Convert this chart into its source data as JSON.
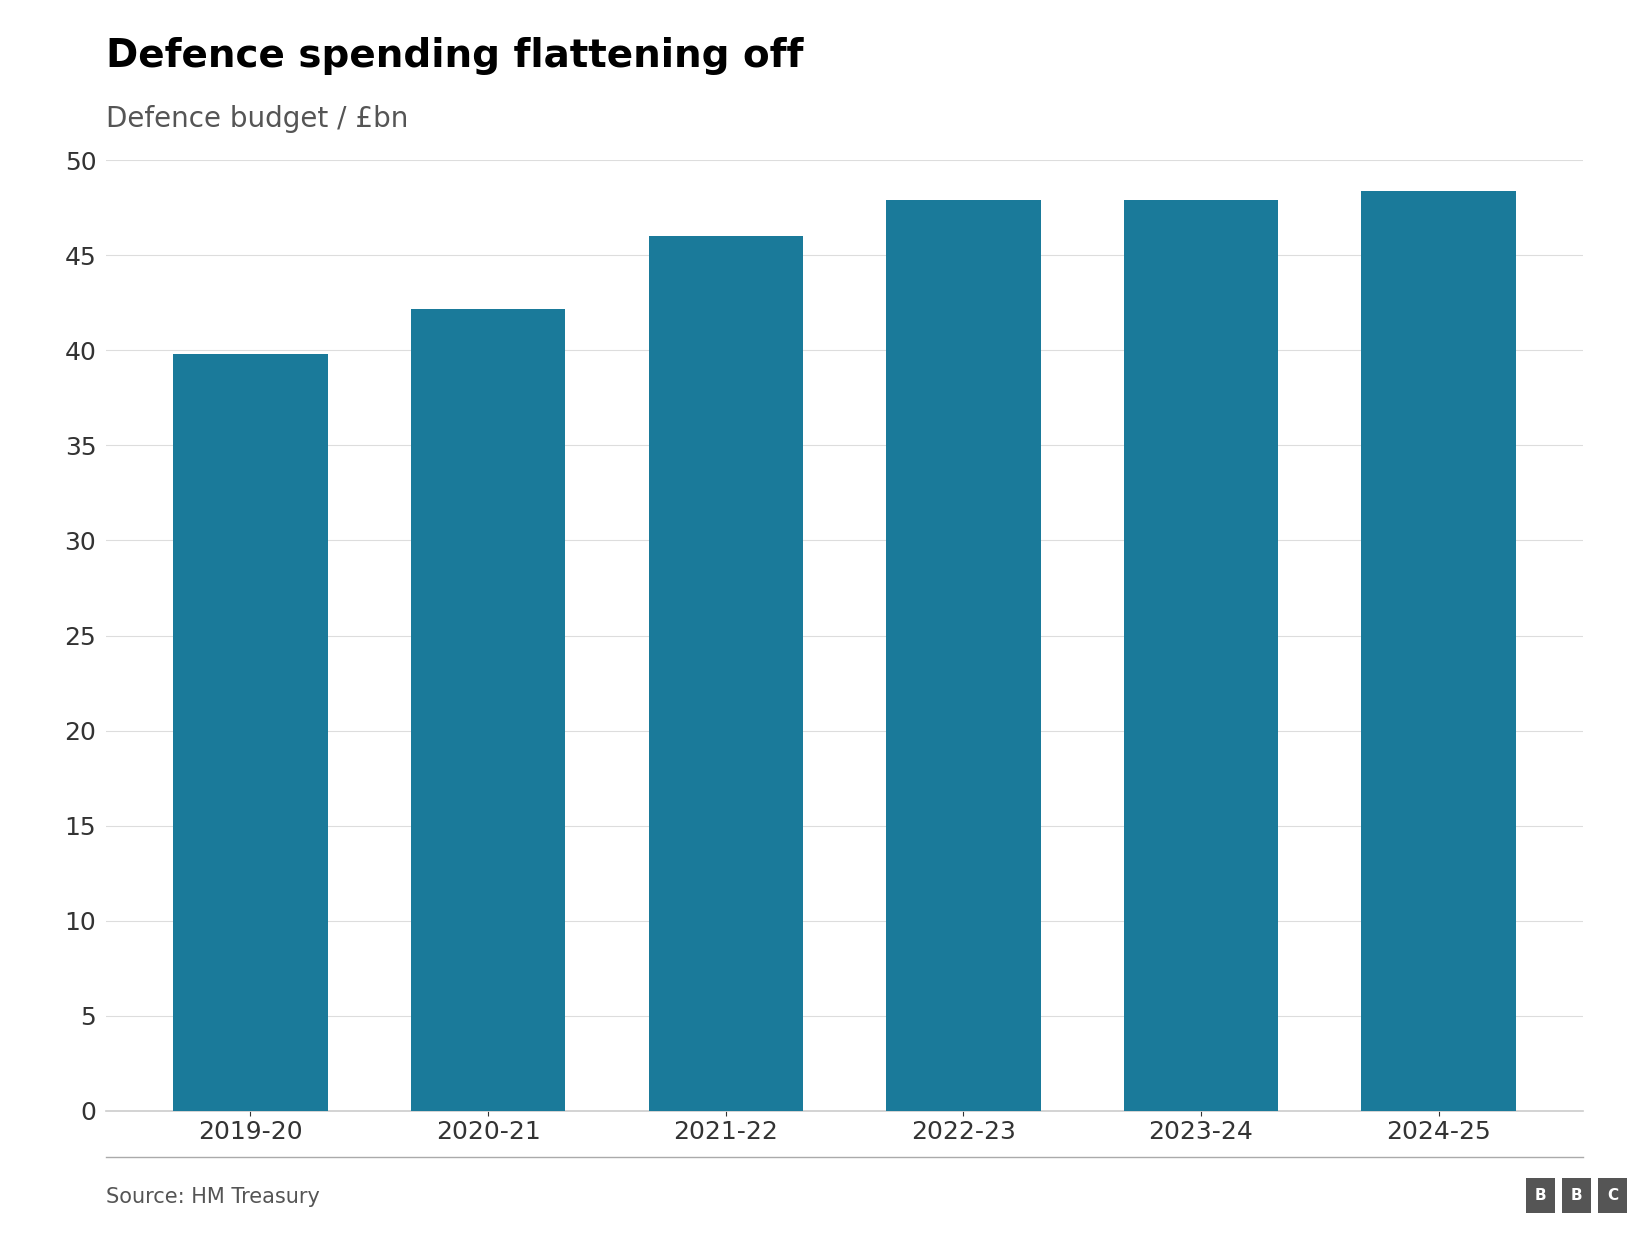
{
  "title": "Defence spending flattening off",
  "subtitle": "Defence budget / £bn",
  "source": "Source: HM Treasury",
  "categories": [
    "2019-20",
    "2020-21",
    "2021-22",
    "2022-23",
    "2023-24",
    "2024-25"
  ],
  "values": [
    39.8,
    42.2,
    46.0,
    47.9,
    47.9,
    48.4
  ],
  "bar_color": "#1a7a9a",
  "ylim": [
    0,
    50
  ],
  "yticks": [
    0,
    5,
    10,
    15,
    20,
    25,
    30,
    35,
    40,
    45,
    50
  ],
  "background_color": "#ffffff",
  "title_fontsize": 28,
  "subtitle_fontsize": 20,
  "tick_fontsize": 18,
  "source_fontsize": 15,
  "title_color": "#000000",
  "subtitle_color": "#555555",
  "tick_color": "#333333",
  "source_color": "#555555",
  "bar_width": 0.65,
  "figsize": [
    16.32,
    12.34
  ],
  "dpi": 100
}
